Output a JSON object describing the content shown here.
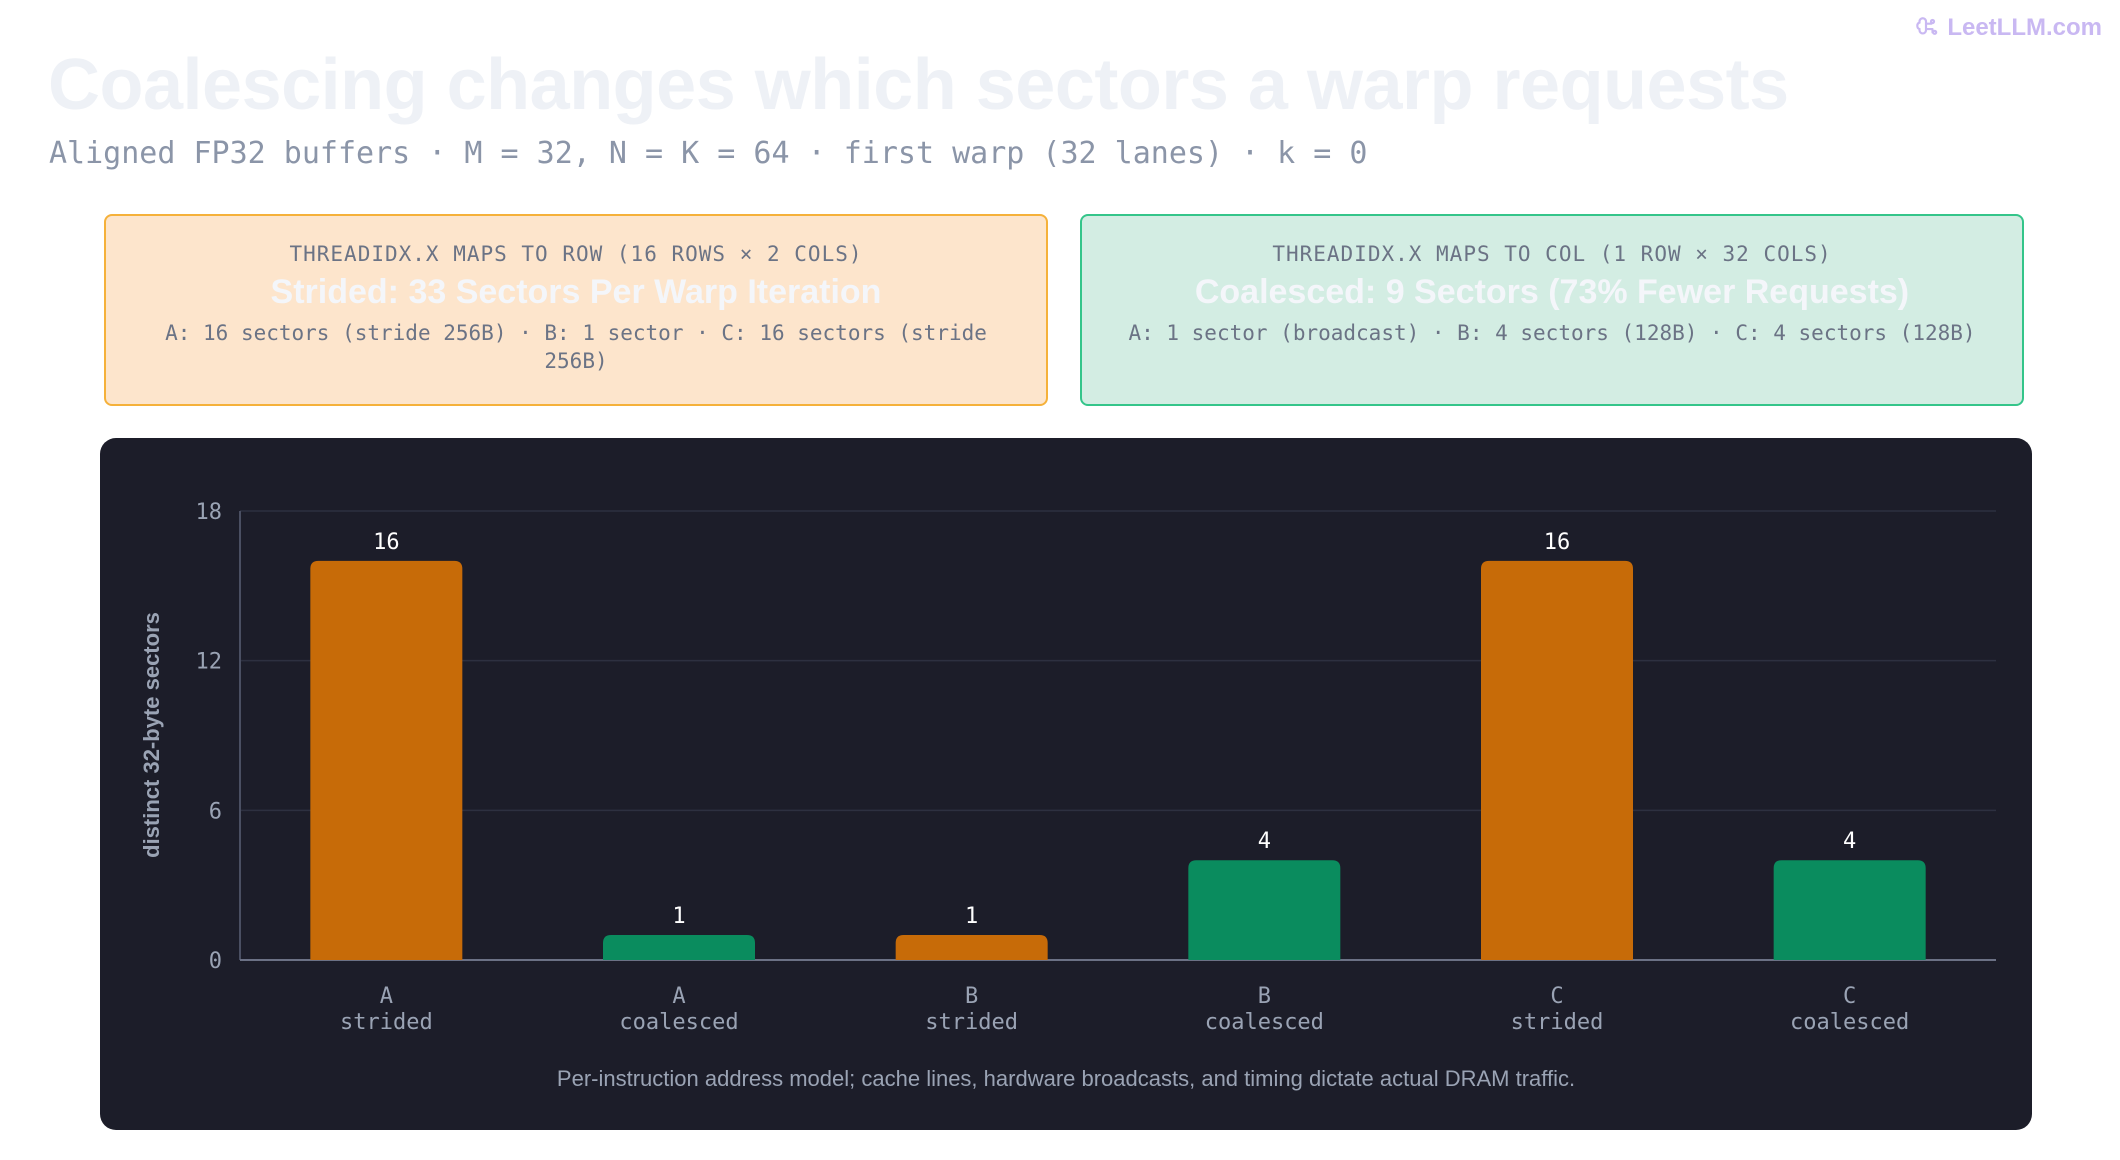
{
  "brand": {
    "name": "LeetLLM.com",
    "icon": "brain-icon"
  },
  "header": {
    "title": "Coalescing changes which sectors a warp requests",
    "subtitle": "Aligned FP32 buffers · M = 32, N = K = 64 · first warp (32 lanes) · k = 0"
  },
  "cards": [
    {
      "kicker": "THREADIDX.X MAPS TO ROW (16 ROWS × 2 COLS)",
      "headline": "Strided: 33 Sectors Per Warp Iteration",
      "detail": "A: 16 sectors (stride 256B) · B: 1 sector · C: 16 sectors (stride 256B)"
    },
    {
      "kicker": "THREADIDX.X MAPS TO COL (1 ROW × 32 COLS)",
      "headline": "Coalesced: 9 Sectors (73% Fewer Requests)",
      "detail": "A: 1 sector (broadcast) · B: 4 sectors (128B) · C: 4 sectors (128B)"
    }
  ],
  "chart_data": {
    "type": "bar",
    "categories": [
      [
        "A",
        "strided"
      ],
      [
        "A",
        "coalesced"
      ],
      [
        "B",
        "strided"
      ],
      [
        "B",
        "coalesced"
      ],
      [
        "C",
        "strided"
      ],
      [
        "C",
        "coalesced"
      ]
    ],
    "values": [
      16,
      1,
      1,
      4,
      16,
      4
    ],
    "kinds": [
      "strided",
      "coalesced",
      "strided",
      "coalesced",
      "strided",
      "coalesced"
    ],
    "data_labels": [
      "16",
      "1",
      "1",
      "4",
      "16",
      "4"
    ],
    "ylabel": "distinct 32-byte sectors",
    "xlabel": "",
    "ylim": [
      0,
      18
    ],
    "yticks": [
      0,
      6,
      12,
      18
    ],
    "grid": true,
    "colors": {
      "strided": "#c76b08",
      "coalesced": "#0a8c5e"
    }
  },
  "footer": {
    "caption": "Per-instruction address model; cache lines, hardware broadcasts, and timing dictate actual DRAM traffic."
  },
  "theme": {
    "panel_bg": "#1c1d29",
    "strided_card_bg": "#fde5cc",
    "coalesced_card_bg": "#d3ede3"
  }
}
